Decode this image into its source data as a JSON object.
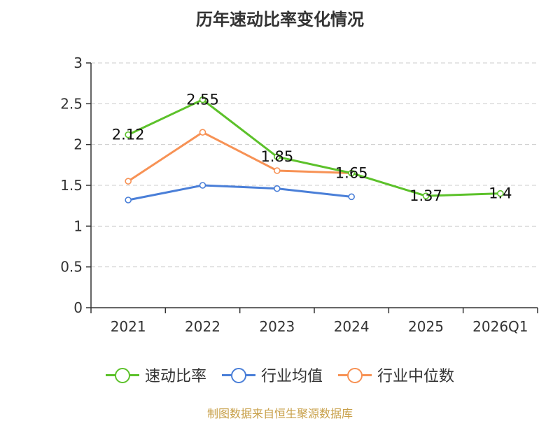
{
  "chart_data": {
    "type": "line",
    "title": "历年速动比率变化情况",
    "categories": [
      "2021",
      "2022",
      "2023",
      "2024",
      "2025",
      "2026Q1"
    ],
    "ylim": [
      0,
      3
    ],
    "yticks": [
      "0",
      "0.5",
      "1",
      "1.5",
      "2",
      "2.5",
      "3"
    ],
    "ytick_values": [
      0,
      0.5,
      1,
      1.5,
      2,
      2.5,
      3
    ],
    "grid": true,
    "series": [
      {
        "name": "速动比率",
        "color": "#5cc12a",
        "values": [
          2.12,
          2.55,
          1.85,
          1.65,
          1.37,
          1.4
        ],
        "labels": [
          "2.12",
          "2.55",
          "1.85",
          "1.65",
          "1.37",
          "1.4"
        ]
      },
      {
        "name": "行业均值",
        "color": "#4a7fd8",
        "values": [
          1.32,
          1.5,
          1.46,
          1.36,
          null,
          null
        ]
      },
      {
        "name": "行业中位数",
        "color": "#f79255",
        "values": [
          1.55,
          2.15,
          1.68,
          1.65,
          null,
          null
        ]
      }
    ]
  },
  "legend": {
    "items": [
      {
        "label": "速动比率",
        "color": "#5cc12a"
      },
      {
        "label": "行业均值",
        "color": "#4a7fd8"
      },
      {
        "label": "行业中位数",
        "color": "#f79255"
      }
    ]
  },
  "source": "制图数据来自恒生聚源数据库"
}
